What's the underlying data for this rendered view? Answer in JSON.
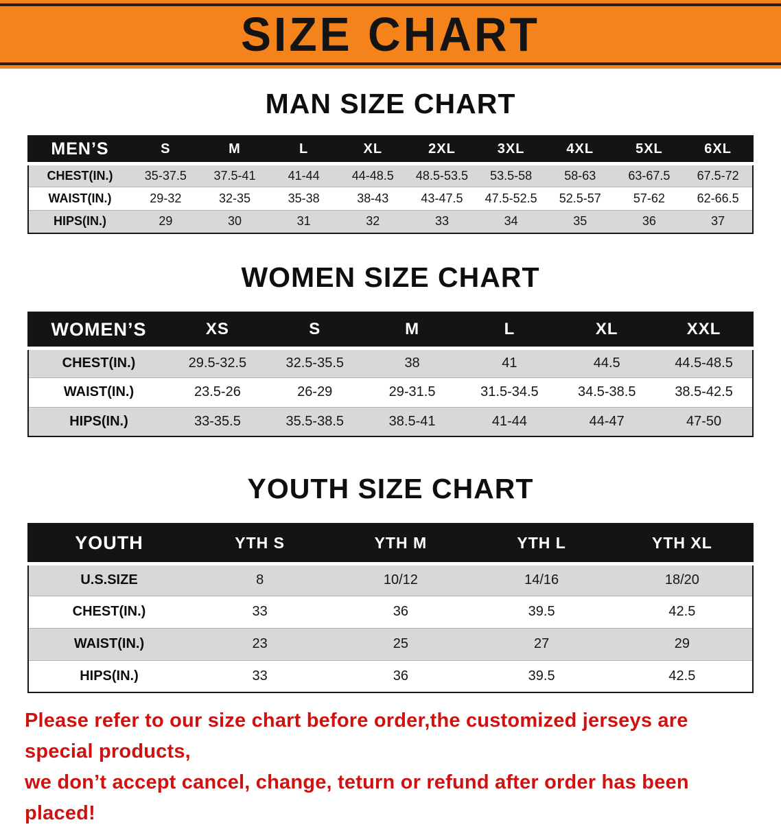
{
  "banner": {
    "title": "SIZE CHART"
  },
  "colors": {
    "banner_bg": "#f5831c",
    "banner_line": "#2a1c0e",
    "header_bg": "#141414",
    "row_shaded": "#d8d8d8",
    "footer_text": "#cf1110"
  },
  "footer": {
    "line1": "Please refer to our size chart before order,the customized jerseys are special products,",
    "line2": "we don’t accept cancel, change, teturn or refund after order has been placed!"
  },
  "chart_data": [
    {
      "type": "table",
      "title": "MAN SIZE CHART",
      "columns": [
        "MEN’S",
        "S",
        "M",
        "L",
        "XL",
        "2XL",
        "3XL",
        "4XL",
        "5XL",
        "6XL"
      ],
      "rows": [
        [
          "CHEST(IN.)",
          "35-37.5",
          "37.5-41",
          "41-44",
          "44-48.5",
          "48.5-53.5",
          "53.5-58",
          "58-63",
          "63-67.5",
          "67.5-72"
        ],
        [
          "WAIST(IN.)",
          "29-32",
          "32-35",
          "35-38",
          "38-43",
          "43-47.5",
          "47.5-52.5",
          "52.5-57",
          "57-62",
          "62-66.5"
        ],
        [
          "HIPS(IN.)",
          "29",
          "30",
          "31",
          "32",
          "33",
          "34",
          "35",
          "36",
          "37"
        ]
      ]
    },
    {
      "type": "table",
      "title": "WOMEN SIZE CHART",
      "columns": [
        "WOMEN’S",
        "XS",
        "S",
        "M",
        "L",
        "XL",
        "XXL"
      ],
      "rows": [
        [
          "CHEST(IN.)",
          "29.5-32.5",
          "32.5-35.5",
          "38",
          "41",
          "44.5",
          "44.5-48.5"
        ],
        [
          "WAIST(IN.)",
          "23.5-26",
          "26-29",
          "29-31.5",
          "31.5-34.5",
          "34.5-38.5",
          "38.5-42.5"
        ],
        [
          "HIPS(IN.)",
          "33-35.5",
          "35.5-38.5",
          "38.5-41",
          "41-44",
          "44-47",
          "47-50"
        ]
      ]
    },
    {
      "type": "table",
      "title": "YOUTH SIZE CHART",
      "columns": [
        "YOUTH",
        "YTH S",
        "YTH M",
        "YTH L",
        "YTH XL"
      ],
      "rows": [
        [
          "U.S.SIZE",
          "8",
          "10/12",
          "14/16",
          "18/20"
        ],
        [
          "CHEST(IN.)",
          "33",
          "36",
          "39.5",
          "42.5"
        ],
        [
          "WAIST(IN.)",
          "23",
          "25",
          "27",
          "29"
        ],
        [
          "HIPS(IN.)",
          "33",
          "36",
          "39.5",
          "42.5"
        ]
      ]
    }
  ]
}
